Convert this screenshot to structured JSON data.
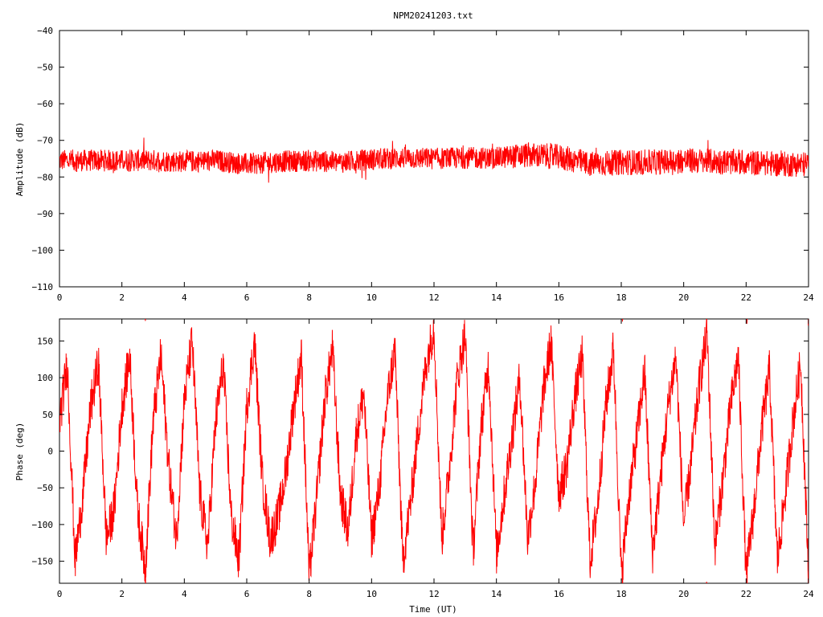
{
  "chart_data": [
    {
      "type": "line",
      "title": "NPM20241203.txt",
      "xlabel": "",
      "ylabel": "Amplitude (dB)",
      "xlim": [
        0,
        24
      ],
      "ylim": [
        -110,
        -40
      ],
      "x_ticks": [
        "0",
        "2",
        "4",
        "6",
        "8",
        "10",
        "12",
        "14",
        "16",
        "18",
        "20",
        "22",
        "24"
      ],
      "y_ticks": [
        "-40",
        "-50",
        "-60",
        "-70",
        "-80",
        "-90",
        "-100",
        "-110"
      ],
      "grid": false,
      "color": "#ff0000",
      "series": [
        {
          "x": [
            0,
            1,
            2,
            3,
            4,
            5,
            6,
            7,
            8,
            9,
            10,
            11,
            12,
            13,
            14,
            15,
            16,
            17,
            18,
            19,
            20,
            21,
            22,
            23,
            24
          ],
          "center": [
            -75.5,
            -75.5,
            -75.5,
            -75.5,
            -75.8,
            -75.5,
            -76.5,
            -75.8,
            -75.5,
            -76.0,
            -75.2,
            -74.8,
            -75.0,
            -74.8,
            -74.8,
            -74.0,
            -74.5,
            -76.5,
            -76.0,
            -76.0,
            -75.5,
            -75.8,
            -76.0,
            -76.5,
            -76.5
          ],
          "spread": [
            3.0,
            3.0,
            3.0,
            3.0,
            3.0,
            3.0,
            3.0,
            3.0,
            3.0,
            3.0,
            3.0,
            3.0,
            3.0,
            3.0,
            3.0,
            3.5,
            3.5,
            3.5,
            3.5,
            3.5,
            3.5,
            3.5,
            3.5,
            3.5,
            3.5
          ]
        }
      ]
    },
    {
      "type": "line",
      "title": "",
      "xlabel": "Time (UT)",
      "ylabel": "Phase (deg)",
      "xlim": [
        0,
        24
      ],
      "ylim": [
        -180,
        180
      ],
      "x_ticks": [
        "0",
        "2",
        "4",
        "6",
        "8",
        "10",
        "12",
        "14",
        "16",
        "18",
        "20",
        "22",
        "24"
      ],
      "y_ticks": [
        "150",
        "100",
        "50",
        "0",
        "-50",
        "-100",
        "-150"
      ],
      "y_tick_values": [
        150,
        100,
        50,
        0,
        -50,
        -100,
        -150
      ],
      "grid": false,
      "color": "#ff0000",
      "series": [
        {
          "x": [
            0,
            0.25,
            0.5,
            0.75,
            1,
            1.25,
            1.5,
            1.75,
            2,
            2.25,
            2.5,
            2.75,
            3,
            3.25,
            3.5,
            3.75,
            4,
            4.25,
            4.5,
            4.75,
            5,
            5.25,
            5.5,
            5.75,
            6,
            6.25,
            6.5,
            6.75,
            7,
            7.25,
            7.5,
            7.75,
            8,
            8.25,
            8.5,
            8.75,
            9,
            9.25,
            9.5,
            9.75,
            10,
            10.25,
            10.5,
            10.75,
            11,
            11.25,
            11.5,
            11.75,
            12,
            12.25,
            12.5,
            12.75,
            13,
            13.25,
            13.5,
            13.75,
            14,
            14.25,
            14.5,
            14.75,
            15,
            15.25,
            15.5,
            15.75,
            16,
            16.25,
            16.5,
            16.75,
            17,
            17.25,
            17.5,
            17.75,
            18,
            18.25,
            18.5,
            18.75,
            19,
            19.25,
            19.5,
            19.75,
            20,
            20.25,
            20.5,
            20.75,
            21,
            21.25,
            21.5,
            21.75,
            22,
            22.25,
            22.5,
            22.75,
            23,
            23.25,
            23.5,
            23.75,
            24
          ],
          "y": [
            40,
            120,
            -150,
            -60,
            60,
            120,
            -120,
            -80,
            60,
            130,
            -80,
            -160,
            40,
            130,
            -20,
            -120,
            70,
            150,
            -60,
            -130,
            40,
            120,
            -90,
            -150,
            60,
            150,
            -40,
            -120,
            -90,
            -30,
            60,
            130,
            -170,
            -60,
            70,
            140,
            -60,
            -110,
            20,
            80,
            -120,
            -50,
            70,
            140,
            -150,
            -70,
            30,
            120,
            170,
            -120,
            -20,
            100,
            160,
            -140,
            30,
            120,
            -140,
            -60,
            20,
            100,
            -120,
            -40,
            80,
            150,
            -60,
            -20,
            70,
            130,
            -150,
            -70,
            60,
            140,
            -170,
            -60,
            20,
            110,
            -140,
            -40,
            60,
            130,
            -100,
            -10,
            90,
            160,
            -130,
            -40,
            60,
            130,
            -170,
            -80,
            30,
            110,
            -150,
            -60,
            40,
            120,
            -170
          ]
        }
      ]
    }
  ]
}
